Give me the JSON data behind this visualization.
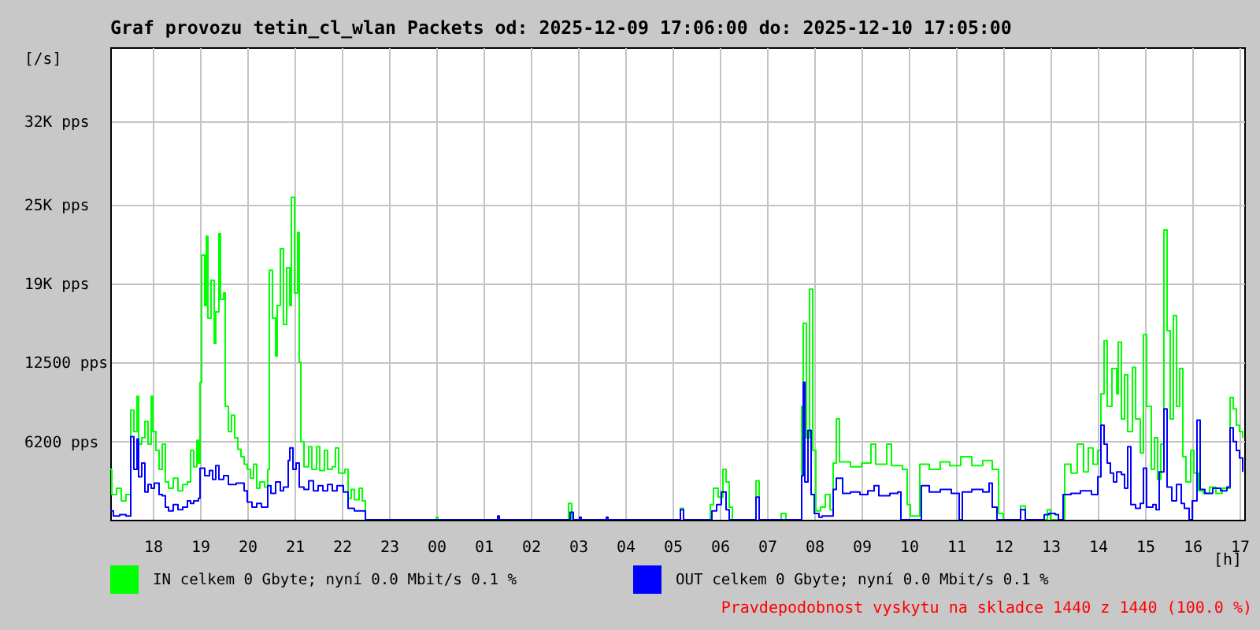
{
  "chart_data": {
    "type": "step",
    "title": "Graf provozu tetin_cl_wlan Packets od: 2025-12-09 17:06:00 do: 2025-12-10 17:05:00",
    "xlabel": "[h]",
    "ylabel": "[/s]",
    "xlim": [
      "2025-12-09T17:06",
      "2025-12-10T17:06"
    ],
    "xticks": [
      {
        "value": "2025-12-09T18:00",
        "label": "18"
      },
      {
        "value": "2025-12-09T19:00",
        "label": "19"
      },
      {
        "value": "2025-12-09T20:00",
        "label": "20"
      },
      {
        "value": "2025-12-09T21:00",
        "label": "21"
      },
      {
        "value": "2025-12-09T22:00",
        "label": "22"
      },
      {
        "value": "2025-12-09T23:00",
        "label": "23"
      },
      {
        "value": "2025-12-10T00:00",
        "label": "00"
      },
      {
        "value": "2025-12-10T01:00",
        "label": "01"
      },
      {
        "value": "2025-12-10T02:00",
        "label": "02"
      },
      {
        "value": "2025-12-10T03:00",
        "label": "03"
      },
      {
        "value": "2025-12-10T04:00",
        "label": "04"
      },
      {
        "value": "2025-12-10T05:00",
        "label": "05"
      },
      {
        "value": "2025-12-10T06:00",
        "label": "06"
      },
      {
        "value": "2025-12-10T07:00",
        "label": "07"
      },
      {
        "value": "2025-12-10T08:00",
        "label": "08"
      },
      {
        "value": "2025-12-10T09:00",
        "label": "09"
      },
      {
        "value": "2025-12-10T10:00",
        "label": "10"
      },
      {
        "value": "2025-12-10T11:00",
        "label": "11"
      },
      {
        "value": "2025-12-10T12:00",
        "label": "12"
      },
      {
        "value": "2025-12-10T13:00",
        "label": "13"
      },
      {
        "value": "2025-12-10T14:00",
        "label": "14"
      },
      {
        "value": "2025-12-10T15:00",
        "label": "15"
      },
      {
        "value": "2025-12-10T16:00",
        "label": "16"
      },
      {
        "value": "2025-12-10T17:00",
        "label": "17"
      }
    ],
    "ylim": [
      0,
      37500
    ],
    "yticks": [
      {
        "value": 6200,
        "label": "6200 pps"
      },
      {
        "value": 12500,
        "label": "12500 pps"
      },
      {
        "value": 18750,
        "label": "19K pps"
      },
      {
        "value": 25000,
        "label": "25K pps"
      },
      {
        "value": 31600,
        "label": "32K pps"
      }
    ],
    "grid": true,
    "legend": "bottom",
    "series": [
      {
        "name": "IN celkem 0 Gbyte; nyní 0.0 Mbit/s 0.1 %",
        "color": "#00ff00",
        "x": [
          "2025-12-09T17:06",
          "2025-12-09T17:08",
          "2025-12-09T17:14",
          "2025-12-09T17:20",
          "2025-12-09T17:26",
          "2025-12-09T17:32",
          "2025-12-09T17:36",
          "2025-12-09T17:40",
          "2025-12-09T17:42",
          "2025-12-09T17:46",
          "2025-12-09T17:50",
          "2025-12-09T17:54",
          "2025-12-09T17:58",
          "2025-12-09T18:00",
          "2025-12-09T18:04",
          "2025-12-09T18:08",
          "2025-12-09T18:12",
          "2025-12-09T18:16",
          "2025-12-09T18:20",
          "2025-12-09T18:26",
          "2025-12-09T18:32",
          "2025-12-09T18:38",
          "2025-12-09T18:44",
          "2025-12-09T18:48",
          "2025-12-09T18:52",
          "2025-12-09T18:56",
          "2025-12-09T18:58",
          "2025-12-09T19:00",
          "2025-12-09T19:02",
          "2025-12-09T19:06",
          "2025-12-09T19:08",
          "2025-12-09T19:10",
          "2025-12-09T19:14",
          "2025-12-09T19:18",
          "2025-12-09T19:20",
          "2025-12-09T19:24",
          "2025-12-09T19:26",
          "2025-12-09T19:30",
          "2025-12-09T19:32",
          "2025-12-09T19:36",
          "2025-12-09T19:40",
          "2025-12-09T19:44",
          "2025-12-09T19:48",
          "2025-12-09T19:52",
          "2025-12-09T19:56",
          "2025-12-09T20:00",
          "2025-12-09T20:04",
          "2025-12-09T20:08",
          "2025-12-09T20:12",
          "2025-12-09T20:16",
          "2025-12-09T20:22",
          "2025-12-09T20:26",
          "2025-12-09T20:28",
          "2025-12-09T20:32",
          "2025-12-09T20:36",
          "2025-12-09T20:38",
          "2025-12-09T20:42",
          "2025-12-09T20:46",
          "2025-12-09T20:50",
          "2025-12-09T20:54",
          "2025-12-09T20:56",
          "2025-12-09T21:00",
          "2025-12-09T21:04",
          "2025-12-09T21:06",
          "2025-12-09T21:08",
          "2025-12-09T21:12",
          "2025-12-09T21:18",
          "2025-12-09T21:22",
          "2025-12-09T21:28",
          "2025-12-09T21:32",
          "2025-12-09T21:38",
          "2025-12-09T21:42",
          "2025-12-09T21:48",
          "2025-12-09T21:52",
          "2025-12-09T21:56",
          "2025-12-09T22:04",
          "2025-12-09T22:08",
          "2025-12-09T22:12",
          "2025-12-09T22:16",
          "2025-12-09T22:22",
          "2025-12-09T22:26",
          "2025-12-09T22:30",
          "2025-12-10T00:00",
          "2025-12-10T00:02",
          "2025-12-10T02:48",
          "2025-12-10T02:52",
          "2025-12-10T05:10",
          "2025-12-10T05:14",
          "2025-12-10T05:48",
          "2025-12-10T05:52",
          "2025-12-10T05:58",
          "2025-12-10T06:04",
          "2025-12-10T06:08",
          "2025-12-10T06:12",
          "2025-12-10T06:16",
          "2025-12-10T06:46",
          "2025-12-10T06:50",
          "2025-12-10T07:18",
          "2025-12-10T07:24",
          "2025-12-10T07:44",
          "2025-12-10T07:46",
          "2025-12-10T07:50",
          "2025-12-10T07:54",
          "2025-12-10T07:58",
          "2025-12-10T08:02",
          "2025-12-10T08:08",
          "2025-12-10T08:14",
          "2025-12-10T08:20",
          "2025-12-10T08:24",
          "2025-12-10T08:28",
          "2025-12-10T08:32",
          "2025-12-10T08:46",
          "2025-12-10T09:00",
          "2025-12-10T09:12",
          "2025-12-10T09:18",
          "2025-12-10T09:32",
          "2025-12-10T09:38",
          "2025-12-10T09:52",
          "2025-12-10T09:58",
          "2025-12-10T10:02",
          "2025-12-10T10:14",
          "2025-12-10T10:26",
          "2025-12-10T10:40",
          "2025-12-10T10:52",
          "2025-12-10T11:06",
          "2025-12-10T11:20",
          "2025-12-10T11:34",
          "2025-12-10T11:46",
          "2025-12-10T11:54",
          "2025-12-10T12:00",
          "2025-12-10T12:22",
          "2025-12-10T12:28",
          "2025-12-10T12:56",
          "2025-12-10T13:00",
          "2025-12-10T13:18",
          "2025-12-10T13:26",
          "2025-12-10T13:34",
          "2025-12-10T13:42",
          "2025-12-10T13:48",
          "2025-12-10T13:54",
          "2025-12-10T14:00",
          "2025-12-10T14:04",
          "2025-12-10T14:08",
          "2025-12-10T14:12",
          "2025-12-10T14:18",
          "2025-12-10T14:24",
          "2025-12-10T14:26",
          "2025-12-10T14:30",
          "2025-12-10T14:34",
          "2025-12-10T14:38",
          "2025-12-10T14:44",
          "2025-12-10T14:48",
          "2025-12-10T14:54",
          "2025-12-10T14:58",
          "2025-12-10T15:02",
          "2025-12-10T15:08",
          "2025-12-10T15:12",
          "2025-12-10T15:16",
          "2025-12-10T15:20",
          "2025-12-10T15:24",
          "2025-12-10T15:28",
          "2025-12-10T15:32",
          "2025-12-10T15:36",
          "2025-12-10T15:40",
          "2025-12-10T15:44",
          "2025-12-10T15:48",
          "2025-12-10T15:52",
          "2025-12-10T15:58",
          "2025-12-10T16:02",
          "2025-12-10T16:08",
          "2025-12-10T16:14",
          "2025-12-10T16:22",
          "2025-12-10T16:30",
          "2025-12-10T16:38",
          "2025-12-10T16:48",
          "2025-12-10T16:52",
          "2025-12-10T16:56",
          "2025-12-10T17:00",
          "2025-12-10T17:04"
        ],
        "values": [
          4000,
          2000,
          2500,
          1500,
          2000,
          8700,
          7000,
          9800,
          6000,
          6500,
          7800,
          6000,
          9800,
          7000,
          5500,
          4000,
          6000,
          3000,
          2500,
          3300,
          2300,
          2800,
          3000,
          5500,
          4200,
          6300,
          4500,
          10900,
          21000,
          17000,
          22500,
          16000,
          19000,
          14000,
          16500,
          22700,
          17500,
          18000,
          9000,
          7000,
          8300,
          6500,
          5600,
          5000,
          4400,
          4000,
          3300,
          4400,
          2500,
          3000,
          2600,
          4000,
          19800,
          16000,
          13000,
          17000,
          21500,
          15500,
          20000,
          17000,
          25600,
          18000,
          22800,
          12500,
          6200,
          4200,
          5800,
          4000,
          5800,
          3900,
          5500,
          4000,
          4200,
          5700,
          3700,
          4000,
          1700,
          2400,
          1600,
          2500,
          1500,
          0,
          200,
          0,
          1300,
          0,
          900,
          0,
          1200,
          2500,
          1800,
          4000,
          3000,
          1000,
          0,
          3100,
          0,
          500,
          0,
          9000,
          15600,
          6500,
          18300,
          5500,
          700,
          1000,
          2000,
          800,
          4500,
          8000,
          4600,
          4200,
          4500,
          6000,
          4400,
          6000,
          4300,
          4000,
          1200,
          300,
          4400,
          4000,
          4600,
          4300,
          5000,
          4300,
          4700,
          4000,
          500,
          0,
          1100,
          0,
          800,
          0,
          4400,
          3700,
          6000,
          3800,
          5700,
          4400,
          5500,
          10000,
          14200,
          9000,
          12000,
          10000,
          14100,
          8000,
          11500,
          7000,
          12100,
          8000,
          5300,
          14700,
          9000,
          4000,
          6500,
          3200,
          6000,
          23000,
          15000,
          8000,
          16200,
          9000,
          12000,
          5000,
          3000,
          5500,
          3700,
          2300,
          2100,
          2600,
          2100,
          2500,
          9700,
          8800,
          7500,
          7000,
          6500
        ]
      },
      {
        "name": "OUT celkem 0 Gbyte; nyní 0.0 Mbit/s 0.1 %",
        "color": "#0000ff",
        "x": [
          "2025-12-09T17:06",
          "2025-12-09T17:10",
          "2025-12-09T17:18",
          "2025-12-09T17:26",
          "2025-12-09T17:32",
          "2025-12-09T17:36",
          "2025-12-09T17:40",
          "2025-12-09T17:42",
          "2025-12-09T17:46",
          "2025-12-09T17:50",
          "2025-12-09T17:54",
          "2025-12-09T17:58",
          "2025-12-09T18:02",
          "2025-12-09T18:08",
          "2025-12-09T18:12",
          "2025-12-09T18:16",
          "2025-12-09T18:20",
          "2025-12-09T18:26",
          "2025-12-09T18:32",
          "2025-12-09T18:38",
          "2025-12-09T18:44",
          "2025-12-09T18:48",
          "2025-12-09T18:52",
          "2025-12-09T18:58",
          "2025-12-09T19:00",
          "2025-12-09T19:06",
          "2025-12-09T19:12",
          "2025-12-09T19:16",
          "2025-12-09T19:20",
          "2025-12-09T19:24",
          "2025-12-09T19:30",
          "2025-12-09T19:36",
          "2025-12-09T19:46",
          "2025-12-09T19:56",
          "2025-12-09T20:00",
          "2025-12-09T20:06",
          "2025-12-09T20:12",
          "2025-12-09T20:18",
          "2025-12-09T20:26",
          "2025-12-09T20:30",
          "2025-12-09T20:36",
          "2025-12-09T20:42",
          "2025-12-09T20:46",
          "2025-12-09T20:52",
          "2025-12-09T20:54",
          "2025-12-09T20:58",
          "2025-12-09T21:02",
          "2025-12-09T21:06",
          "2025-12-09T21:12",
          "2025-12-09T21:18",
          "2025-12-09T21:24",
          "2025-12-09T21:30",
          "2025-12-09T21:36",
          "2025-12-09T21:42",
          "2025-12-09T21:48",
          "2025-12-09T21:54",
          "2025-12-09T22:02",
          "2025-12-09T22:08",
          "2025-12-09T22:16",
          "2025-12-09T22:26",
          "2025-12-09T22:30",
          "2025-12-10T01:18",
          "2025-12-10T01:20",
          "2025-12-10T02:50",
          "2025-12-10T02:54",
          "2025-12-10T03:02",
          "2025-12-10T03:04",
          "2025-12-10T03:36",
          "2025-12-10T03:38",
          "2025-12-10T05:10",
          "2025-12-10T05:14",
          "2025-12-10T05:50",
          "2025-12-10T05:56",
          "2025-12-10T06:02",
          "2025-12-10T06:08",
          "2025-12-10T06:12",
          "2025-12-10T06:46",
          "2025-12-10T06:50",
          "2025-12-10T07:44",
          "2025-12-10T07:46",
          "2025-12-10T07:48",
          "2025-12-10T07:52",
          "2025-12-10T07:56",
          "2025-12-10T08:00",
          "2025-12-10T08:06",
          "2025-12-10T08:10",
          "2025-12-10T08:24",
          "2025-12-10T08:28",
          "2025-12-10T08:36",
          "2025-12-10T08:46",
          "2025-12-10T08:58",
          "2025-12-10T09:08",
          "2025-12-10T09:16",
          "2025-12-10T09:22",
          "2025-12-10T09:36",
          "2025-12-10T09:46",
          "2025-12-10T09:50",
          "2025-12-10T10:16",
          "2025-12-10T10:26",
          "2025-12-10T10:40",
          "2025-12-10T10:54",
          "2025-12-10T11:04",
          "2025-12-10T11:08",
          "2025-12-10T11:20",
          "2025-12-10T11:34",
          "2025-12-10T11:42",
          "2025-12-10T11:46",
          "2025-12-10T11:52",
          "2025-12-10T12:22",
          "2025-12-10T12:28",
          "2025-12-10T12:52",
          "2025-12-10T12:58",
          "2025-12-10T13:06",
          "2025-12-10T13:10",
          "2025-12-10T13:16",
          "2025-12-10T13:26",
          "2025-12-10T13:38",
          "2025-12-10T13:52",
          "2025-12-10T14:00",
          "2025-12-10T14:04",
          "2025-12-10T14:08",
          "2025-12-10T14:12",
          "2025-12-10T14:16",
          "2025-12-10T14:20",
          "2025-12-10T14:24",
          "2025-12-10T14:30",
          "2025-12-10T14:34",
          "2025-12-10T14:38",
          "2025-12-10T14:42",
          "2025-12-10T14:48",
          "2025-12-10T14:54",
          "2025-12-10T14:58",
          "2025-12-10T15:02",
          "2025-12-10T15:10",
          "2025-12-10T15:14",
          "2025-12-10T15:18",
          "2025-12-10T15:24",
          "2025-12-10T15:28",
          "2025-12-10T15:34",
          "2025-12-10T15:40",
          "2025-12-10T15:46",
          "2025-12-10T15:50",
          "2025-12-10T15:56",
          "2025-12-10T16:00",
          "2025-12-10T16:06",
          "2025-12-10T16:10",
          "2025-12-10T16:16",
          "2025-12-10T16:26",
          "2025-12-10T16:36",
          "2025-12-10T16:44",
          "2025-12-10T16:48",
          "2025-12-10T16:52",
          "2025-12-10T16:56",
          "2025-12-10T17:00",
          "2025-12-10T17:04"
        ],
        "values": [
          700,
          300,
          400,
          300,
          6600,
          4000,
          6400,
          3400,
          4500,
          2200,
          2800,
          2500,
          2900,
          2000,
          1900,
          1000,
          700,
          1200,
          800,
          1000,
          1500,
          1300,
          1500,
          1700,
          4100,
          3500,
          3900,
          3200,
          4300,
          3200,
          3500,
          2800,
          2900,
          2300,
          1400,
          1000,
          1300,
          1000,
          2700,
          2100,
          3000,
          2300,
          2600,
          4700,
          5700,
          4000,
          4500,
          2600,
          2400,
          3100,
          2300,
          2700,
          2300,
          2800,
          2300,
          2700,
          2200,
          900,
          700,
          700,
          0,
          300,
          0,
          600,
          0,
          200,
          0,
          200,
          0,
          800,
          0,
          700,
          1200,
          2200,
          800,
          0,
          1800,
          0,
          3500,
          10900,
          3000,
          7100,
          2000,
          500,
          200,
          300,
          2400,
          3300,
          2100,
          2200,
          2000,
          2300,
          2700,
          1900,
          2100,
          2200,
          0,
          2700,
          2200,
          2400,
          2100,
          0,
          2200,
          2400,
          2200,
          2900,
          1000,
          0,
          800,
          0,
          400,
          500,
          400,
          0,
          2000,
          2100,
          2300,
          2000,
          3400,
          7500,
          6000,
          4500,
          3700,
          3000,
          3800,
          3600,
          2500,
          5800,
          1200,
          900,
          1300,
          4100,
          1000,
          1200,
          800,
          3800,
          8800,
          2600,
          1500,
          2800,
          1300,
          900,
          0,
          1500,
          7900,
          2400,
          2100,
          2500,
          2300,
          2600,
          7300,
          6200,
          5500,
          4900,
          3800
        ]
      }
    ],
    "annotations": [
      "Pravdepodobnost vyskytu na skladce 1440 z 1440 (100.0 %)"
    ]
  }
}
